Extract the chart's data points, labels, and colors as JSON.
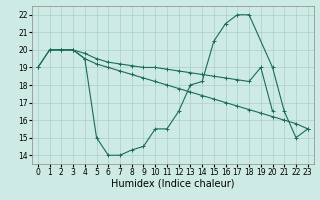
{
  "xlabel": "Humidex (Indice chaleur)",
  "background_color": "#ceeae4",
  "grid_color": "#aacfc8",
  "line_color": "#1a6b5a",
  "xlim": [
    -0.5,
    23.5
  ],
  "ylim": [
    13.5,
    22.5
  ],
  "xticks": [
    0,
    1,
    2,
    3,
    4,
    5,
    6,
    7,
    8,
    9,
    10,
    11,
    12,
    13,
    14,
    15,
    16,
    17,
    18,
    19,
    20,
    21,
    22,
    23
  ],
  "yticks": [
    14,
    15,
    16,
    17,
    18,
    19,
    20,
    21,
    22
  ],
  "line1_x": [
    0,
    1,
    2,
    3,
    4,
    5,
    6,
    7,
    8,
    9,
    10,
    11,
    12,
    13,
    14,
    15,
    16,
    17,
    18,
    20,
    21,
    22,
    23
  ],
  "line1_y": [
    19,
    20,
    20,
    20,
    19.5,
    15,
    14,
    14,
    14.3,
    14.5,
    15.5,
    15.5,
    16.5,
    18,
    18.2,
    20.5,
    21.5,
    22,
    22,
    19,
    16.5,
    15,
    15.5
  ],
  "line2_x": [
    0,
    1,
    2,
    3,
    4,
    5,
    6,
    7,
    8,
    9,
    10,
    11,
    12,
    13,
    14,
    15,
    16,
    17,
    18,
    19,
    20
  ],
  "line2_y": [
    19,
    20,
    20,
    20,
    19.8,
    19.5,
    19.3,
    19.2,
    19.1,
    19.0,
    19.0,
    18.9,
    18.8,
    18.7,
    18.6,
    18.5,
    18.4,
    18.3,
    18.2,
    19.0,
    16.5
  ],
  "line3_x": [
    1,
    2,
    3,
    4,
    5,
    6,
    7,
    8,
    9,
    10,
    11,
    12,
    13,
    14,
    15,
    16,
    17,
    18,
    19,
    20,
    21,
    22,
    23
  ],
  "line3_y": [
    20,
    20,
    20,
    19.5,
    19.2,
    19.0,
    18.8,
    18.6,
    18.4,
    18.2,
    18.0,
    17.8,
    17.6,
    17.4,
    17.2,
    17.0,
    16.8,
    16.6,
    16.4,
    16.2,
    16.0,
    15.8,
    15.5
  ],
  "marker": "+",
  "markersize": 3,
  "linewidth": 0.8,
  "tick_fontsize": 5.5,
  "label_fontsize": 7
}
